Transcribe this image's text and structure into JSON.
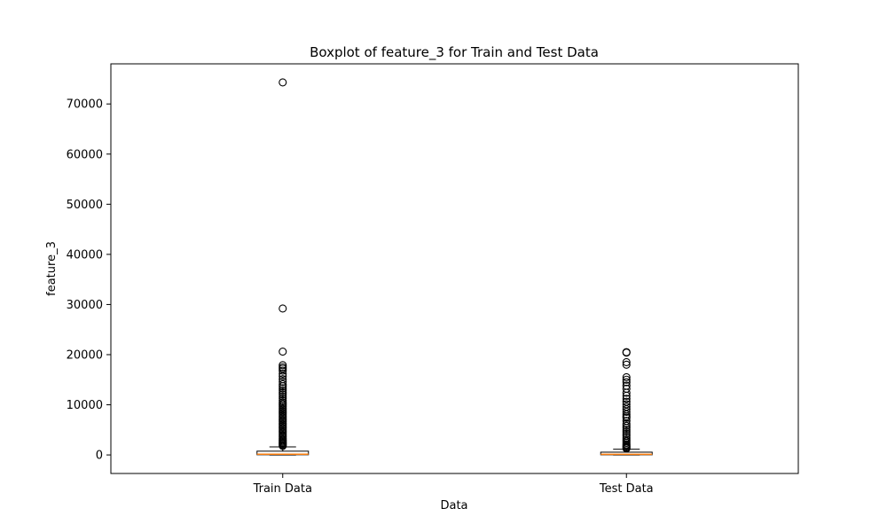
{
  "chart_data": {
    "type": "boxplot",
    "title": "Boxplot of feature_3 for Train and Test Data",
    "xlabel": "Data",
    "ylabel": "feature_3",
    "ylim": [
      -3700,
      78000
    ],
    "yticks": [
      0,
      10000,
      20000,
      30000,
      40000,
      50000,
      60000,
      70000
    ],
    "grid": false,
    "categories": [
      "Train Data",
      "Test Data"
    ],
    "boxes": [
      {
        "category": "Train Data",
        "whisker_low": 0,
        "q1": 40,
        "median": 150,
        "q3": 750,
        "whisker_high": 1600,
        "fliers": [
          74300,
          29200,
          20600,
          17900,
          17500,
          17200,
          16800,
          16200,
          15700,
          15100,
          14600,
          14100,
          13700,
          13300,
          12900,
          12500,
          12100,
          11700,
          11300,
          10900,
          10500,
          10200,
          9900,
          9600,
          9300,
          9000,
          8700,
          8400,
          8100,
          7800,
          7500,
          7200,
          6900,
          6600,
          6300,
          6000,
          5700,
          5400,
          5100,
          4800,
          4500,
          4200,
          3900,
          3600,
          3300,
          3000,
          2800,
          2600,
          2400,
          2200,
          2000,
          1800
        ]
      },
      {
        "category": "Test Data",
        "whisker_low": 0,
        "q1": 30,
        "median": 120,
        "q3": 550,
        "whisker_high": 1150,
        "fliers": [
          20500,
          20400,
          18500,
          18000,
          15500,
          15000,
          14500,
          13800,
          13200,
          12400,
          11800,
          11200,
          10600,
          10100,
          9600,
          9100,
          8600,
          8100,
          7700,
          7400,
          6800,
          6200,
          5800,
          5400,
          5000,
          4600,
          4200,
          3800,
          3400,
          3000,
          2700,
          2400,
          2100,
          1900,
          1700,
          1500,
          1300
        ]
      }
    ],
    "colors": {
      "box_fill": "#ffffff",
      "box_edge": "#000000",
      "median": "#ff7f0e",
      "flier_edge": "#000000"
    }
  }
}
